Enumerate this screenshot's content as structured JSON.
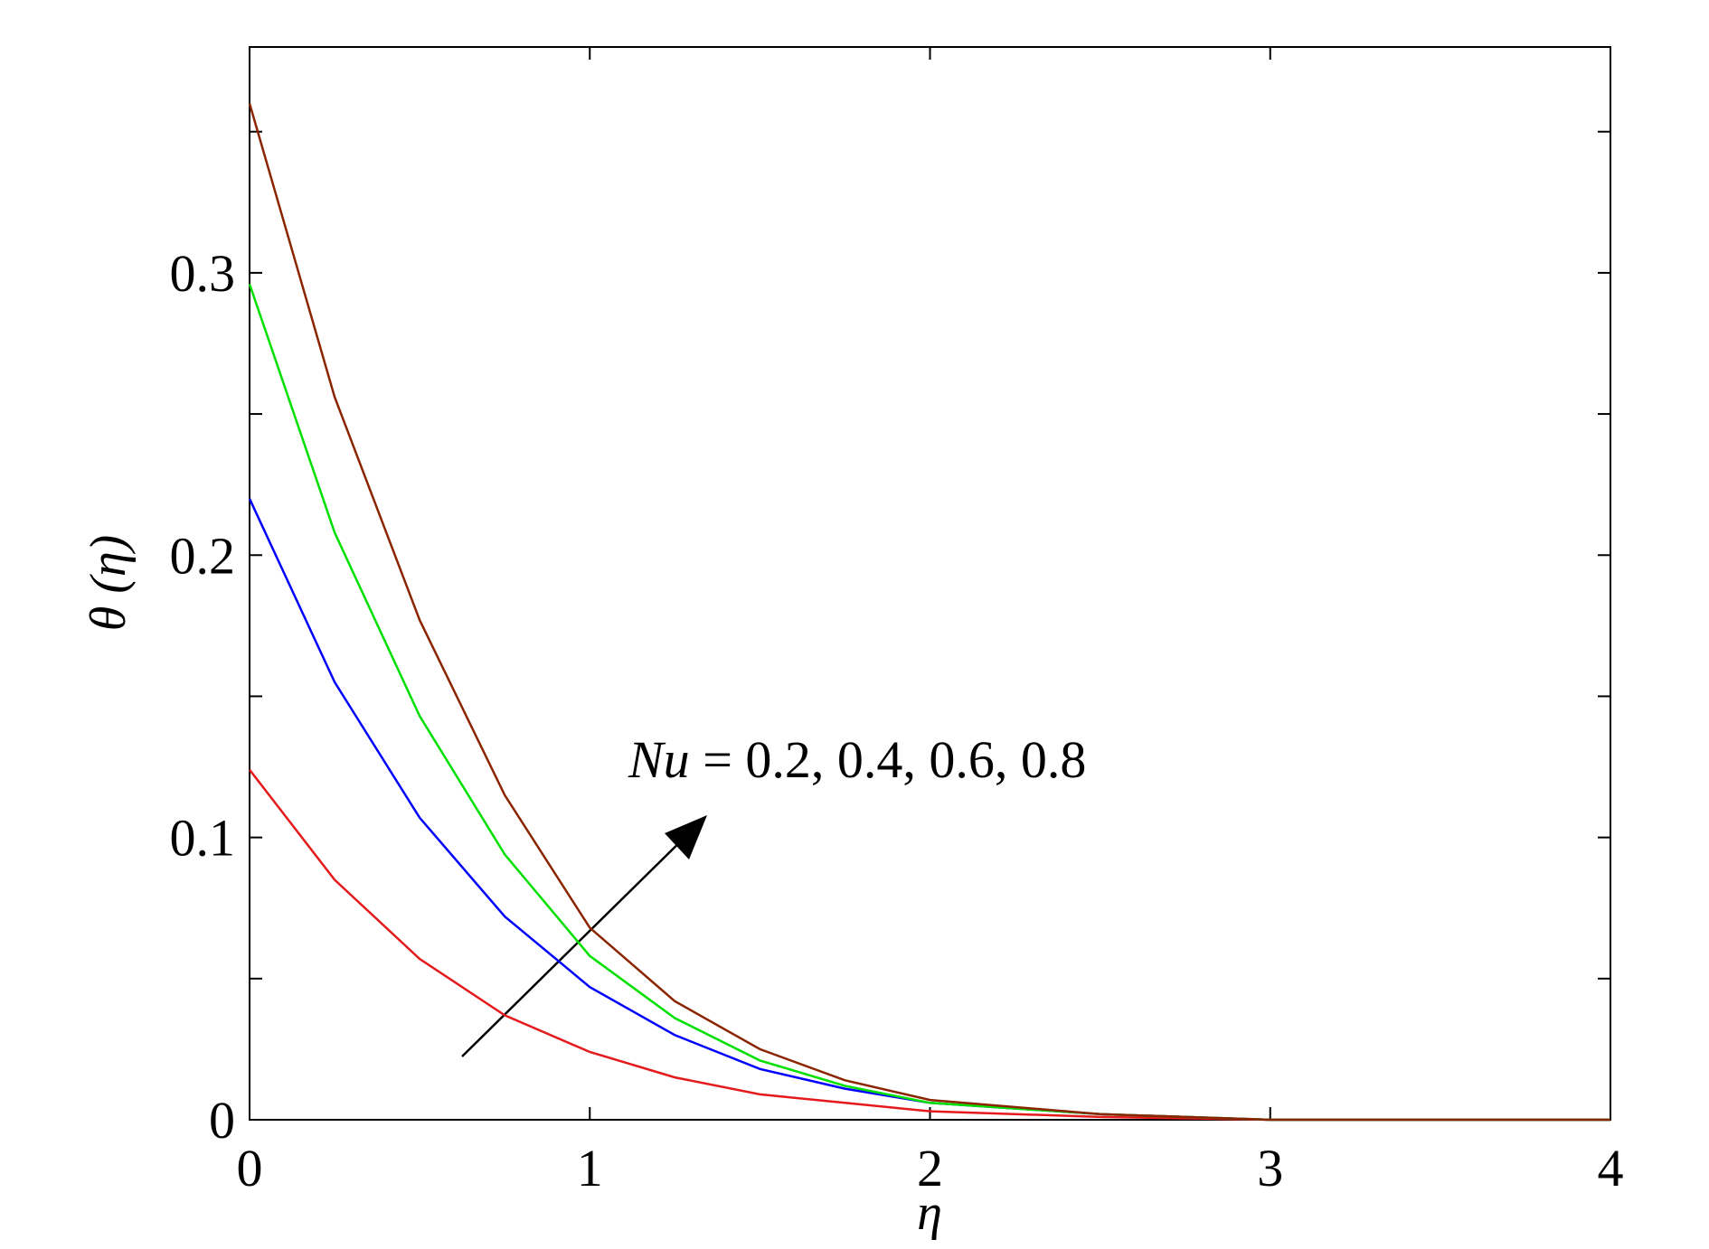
{
  "chart_data": {
    "type": "line",
    "xlabel": "η",
    "ylabel": "θ (η)",
    "annotation_symbol": "Nu",
    "annotation_text": "= 0.2, 0.4, 0.6, 0.8",
    "x": [
      0,
      0.25,
      0.5,
      0.75,
      1,
      1.25,
      1.5,
      1.75,
      2,
      2.5,
      3,
      3.5,
      4
    ],
    "series": [
      {
        "color": "#e41a1c",
        "values": [
          0.124,
          0.085,
          0.057,
          0.037,
          0.024,
          0.015,
          0.009,
          0.006,
          0.003,
          0.001,
          0,
          0,
          0
        ]
      },
      {
        "color": "#0000ff",
        "values": [
          0.22,
          0.155,
          0.107,
          0.072,
          0.047,
          0.03,
          0.018,
          0.011,
          0.006,
          0.002,
          0,
          0,
          0
        ]
      },
      {
        "color": "#00e000",
        "values": [
          0.296,
          0.208,
          0.143,
          0.094,
          0.058,
          0.036,
          0.021,
          0.012,
          0.006,
          0.002,
          0,
          0,
          0
        ]
      },
      {
        "color": "#8b2500",
        "values": [
          0.36,
          0.256,
          0.177,
          0.115,
          0.068,
          0.042,
          0.025,
          0.014,
          0.007,
          0.002,
          0,
          0,
          0
        ]
      }
    ],
    "xlim": [
      0,
      4
    ],
    "xticks": [
      0,
      1,
      2,
      3,
      4
    ],
    "ylim": [
      0,
      0.38
    ],
    "yticks": [
      0,
      0.1,
      0.2,
      0.3
    ],
    "yminorticks": [
      0.05,
      0.15,
      0.25,
      0.35
    ]
  }
}
